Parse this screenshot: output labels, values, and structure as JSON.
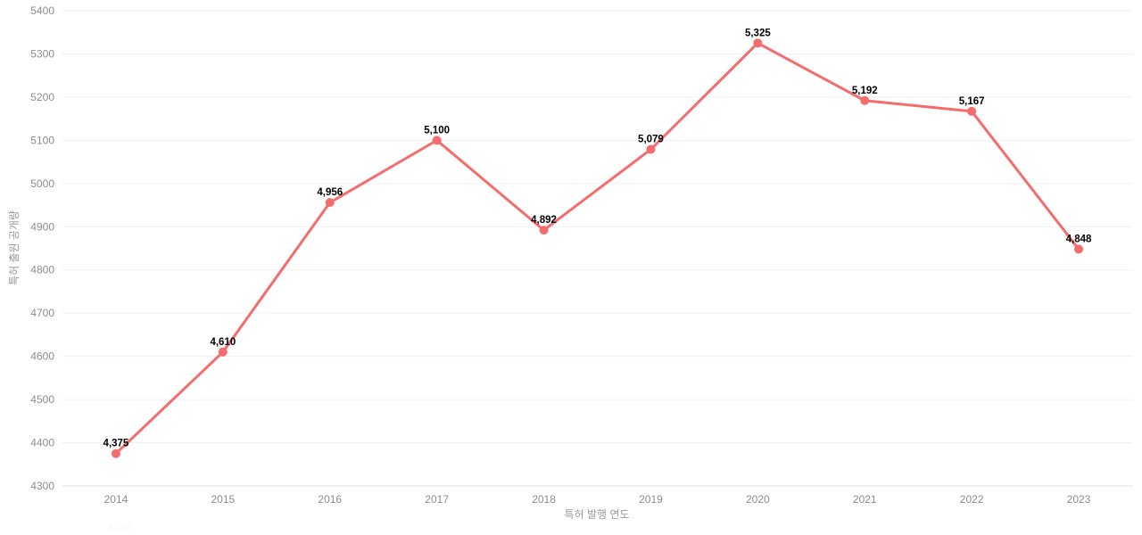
{
  "colors": {
    "line": "#f56c6c",
    "point_fill": "#f56c6c",
    "point_label": "#000000",
    "tick_label": "#8c8c8c",
    "axis_name": "#999999",
    "grid_line": "#f0f0f2",
    "axis_line": "#dcdfee",
    "background": "#ffffff",
    "faded_tick_label": "#f7f8fa"
  },
  "chart_data": {
    "type": "line",
    "title": "",
    "categories": [
      "2014",
      "2015",
      "2016",
      "2017",
      "2018",
      "2019",
      "2020",
      "2021",
      "2022",
      "2023"
    ],
    "values": [
      4375,
      4610,
      4956,
      5100,
      4892,
      5079,
      5325,
      5192,
      5167,
      4848
    ],
    "point_labels": [
      "4,375",
      "4,610",
      "4,956",
      "5,100",
      "4,892",
      "5,079",
      "5,325",
      "5,192",
      "5,167",
      "4,848"
    ],
    "xlabel": "특허 발행 연도",
    "ylabel": "특허 출원 공개량",
    "ylim": [
      4300,
      5400
    ],
    "y_ticks": [
      4300,
      4400,
      4500,
      4600,
      4700,
      4800,
      4900,
      5000,
      5100,
      5200,
      5300,
      5400
    ],
    "y_tick_labels": [
      "4300",
      "4400",
      "4500",
      "4600",
      "4700",
      "4800",
      "4900",
      "5000",
      "5100",
      "5200",
      "5300",
      "5400"
    ],
    "grid": true,
    "legend_position": "none"
  },
  "artifacts": {
    "faded_y_tick": "4200"
  }
}
